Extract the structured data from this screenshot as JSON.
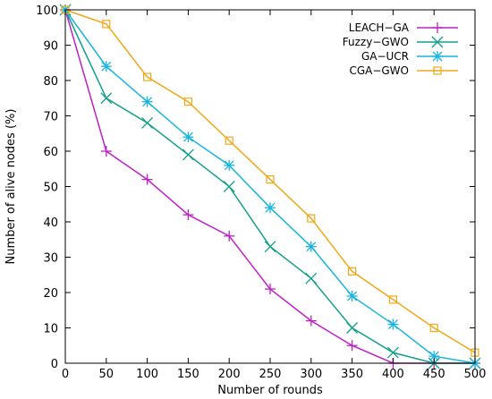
{
  "chart_data": {
    "type": "line",
    "xlabel": "Number of rounds",
    "ylabel": "Number of alive nodes (%)",
    "xlim": [
      0,
      500
    ],
    "ylim": [
      0,
      100
    ],
    "xticks": [
      0,
      50,
      100,
      150,
      200,
      250,
      300,
      350,
      400,
      450,
      500
    ],
    "yticks": [
      0,
      10,
      20,
      30,
      40,
      50,
      60,
      70,
      80,
      90,
      100
    ],
    "grid": false,
    "legend_position": "top-right",
    "x": [
      0,
      50,
      100,
      150,
      200,
      250,
      300,
      350,
      400,
      450,
      500
    ],
    "series": [
      {
        "name": "LEACH−GA",
        "color": "#c020c8",
        "marker": "plus",
        "values": [
          100,
          60,
          52,
          42,
          36,
          21,
          12,
          5,
          0,
          0,
          0
        ]
      },
      {
        "name": "Fuzzy−GWO",
        "color": "#12a08a",
        "marker": "cross",
        "values": [
          100,
          75,
          68,
          59,
          50,
          33,
          24,
          10,
          3,
          0,
          0
        ]
      },
      {
        "name": "GA−UCR",
        "color": "#18b4e0",
        "marker": "star",
        "values": [
          100,
          84,
          74,
          64,
          56,
          44,
          33,
          19,
          11,
          2,
          0
        ]
      },
      {
        "name": "CGA−GWO",
        "color": "#f0a818",
        "marker": "square",
        "values": [
          100,
          96,
          81,
          74,
          63,
          52,
          41,
          26,
          18,
          10,
          3
        ]
      }
    ]
  }
}
